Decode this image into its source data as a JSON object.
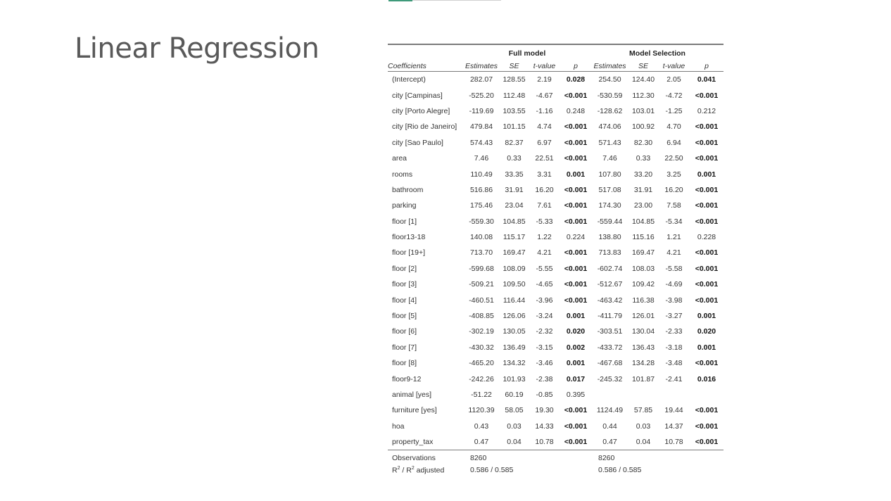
{
  "slide": {
    "title": "Linear Regression"
  },
  "table": {
    "groups": [
      "Full model",
      "Model Selection"
    ],
    "col_headers": [
      "Coefficients",
      "Estimates",
      "SE",
      "t-value",
      "p",
      "Estimates",
      "SE",
      "t-value",
      "p"
    ],
    "rows": [
      {
        "term": "(Intercept)",
        "full": [
          "282.07",
          "128.55",
          "2.19",
          "0.028"
        ],
        "sel": [
          "254.50",
          "124.40",
          "2.05",
          "0.041"
        ]
      },
      {
        "term": "city [Campinas]",
        "full": [
          "-525.20",
          "112.48",
          "-4.67",
          "<0.001"
        ],
        "sel": [
          "-530.59",
          "112.30",
          "-4.72",
          "<0.001"
        ]
      },
      {
        "term": "city [Porto Alegre]",
        "full": [
          "-119.69",
          "103.55",
          "-1.16",
          "0.248"
        ],
        "sel": [
          "-128.62",
          "103.01",
          "-1.25",
          "0.212"
        ]
      },
      {
        "term": "city [Rio de Janeiro]",
        "full": [
          "479.84",
          "101.15",
          "4.74",
          "<0.001"
        ],
        "sel": [
          "474.06",
          "100.92",
          "4.70",
          "<0.001"
        ]
      },
      {
        "term": "city [Sao Paulo]",
        "full": [
          "574.43",
          "82.37",
          "6.97",
          "<0.001"
        ],
        "sel": [
          "571.43",
          "82.30",
          "6.94",
          "<0.001"
        ]
      },
      {
        "term": "area",
        "full": [
          "7.46",
          "0.33",
          "22.51",
          "<0.001"
        ],
        "sel": [
          "7.46",
          "0.33",
          "22.50",
          "<0.001"
        ]
      },
      {
        "term": "rooms",
        "full": [
          "110.49",
          "33.35",
          "3.31",
          "0.001"
        ],
        "sel": [
          "107.80",
          "33.20",
          "3.25",
          "0.001"
        ]
      },
      {
        "term": "bathroom",
        "full": [
          "516.86",
          "31.91",
          "16.20",
          "<0.001"
        ],
        "sel": [
          "517.08",
          "31.91",
          "16.20",
          "<0.001"
        ]
      },
      {
        "term": "parking",
        "full": [
          "175.46",
          "23.04",
          "7.61",
          "<0.001"
        ],
        "sel": [
          "174.30",
          "23.00",
          "7.58",
          "<0.001"
        ]
      },
      {
        "term": "floor [1]",
        "full": [
          "-559.30",
          "104.85",
          "-5.33",
          "<0.001"
        ],
        "sel": [
          "-559.44",
          "104.85",
          "-5.34",
          "<0.001"
        ]
      },
      {
        "term": "floor13-18",
        "full": [
          "140.08",
          "115.17",
          "1.22",
          "0.224"
        ],
        "sel": [
          "138.80",
          "115.16",
          "1.21",
          "0.228"
        ]
      },
      {
        "term": "floor [19+]",
        "full": [
          "713.70",
          "169.47",
          "4.21",
          "<0.001"
        ],
        "sel": [
          "713.83",
          "169.47",
          "4.21",
          "<0.001"
        ]
      },
      {
        "term": "floor [2]",
        "full": [
          "-599.68",
          "108.09",
          "-5.55",
          "<0.001"
        ],
        "sel": [
          "-602.74",
          "108.03",
          "-5.58",
          "<0.001"
        ]
      },
      {
        "term": "floor [3]",
        "full": [
          "-509.21",
          "109.50",
          "-4.65",
          "<0.001"
        ],
        "sel": [
          "-512.67",
          "109.42",
          "-4.69",
          "<0.001"
        ]
      },
      {
        "term": "floor [4]",
        "full": [
          "-460.51",
          "116.44",
          "-3.96",
          "<0.001"
        ],
        "sel": [
          "-463.42",
          "116.38",
          "-3.98",
          "<0.001"
        ]
      },
      {
        "term": "floor [5]",
        "full": [
          "-408.85",
          "126.06",
          "-3.24",
          "0.001"
        ],
        "sel": [
          "-411.79",
          "126.01",
          "-3.27",
          "0.001"
        ]
      },
      {
        "term": "floor [6]",
        "full": [
          "-302.19",
          "130.05",
          "-2.32",
          "0.020"
        ],
        "sel": [
          "-303.51",
          "130.04",
          "-2.33",
          "0.020"
        ]
      },
      {
        "term": "floor [7]",
        "full": [
          "-430.32",
          "136.49",
          "-3.15",
          "0.002"
        ],
        "sel": [
          "-433.72",
          "136.43",
          "-3.18",
          "0.001"
        ]
      },
      {
        "term": "floor [8]",
        "full": [
          "-465.20",
          "134.32",
          "-3.46",
          "0.001"
        ],
        "sel": [
          "-467.68",
          "134.28",
          "-3.48",
          "<0.001"
        ]
      },
      {
        "term": "floor9-12",
        "full": [
          "-242.26",
          "101.93",
          "-2.38",
          "0.017"
        ],
        "sel": [
          "-245.32",
          "101.87",
          "-2.41",
          "0.016"
        ]
      },
      {
        "term": "animal [yes]",
        "full": [
          "-51.22",
          "60.19",
          "-0.85",
          "0.395"
        ],
        "sel": [
          "",
          "",
          "",
          ""
        ]
      },
      {
        "term": "furniture [yes]",
        "full": [
          "1120.39",
          "58.05",
          "19.30",
          "<0.001"
        ],
        "sel": [
          "1124.49",
          "57.85",
          "19.44",
          "<0.001"
        ]
      },
      {
        "term": "hoa",
        "full": [
          "0.43",
          "0.03",
          "14.33",
          "<0.001"
        ],
        "sel": [
          "0.44",
          "0.03",
          "14.37",
          "<0.001"
        ]
      },
      {
        "term": "property_tax",
        "full": [
          "0.47",
          "0.04",
          "10.78",
          "<0.001"
        ],
        "sel": [
          "0.47",
          "0.04",
          "10.78",
          "<0.001"
        ]
      }
    ],
    "footer": {
      "observations_label": "Observations",
      "observations": [
        "8260",
        "8260"
      ],
      "r2_label_a": "R",
      "r2_sup_a": "2",
      "r2_label_b": " / R",
      "r2_sup_b": "2",
      "r2_label_c": " adjusted",
      "r2": [
        "0.586 / 0.585",
        "0.586 / 0.585"
      ]
    }
  }
}
